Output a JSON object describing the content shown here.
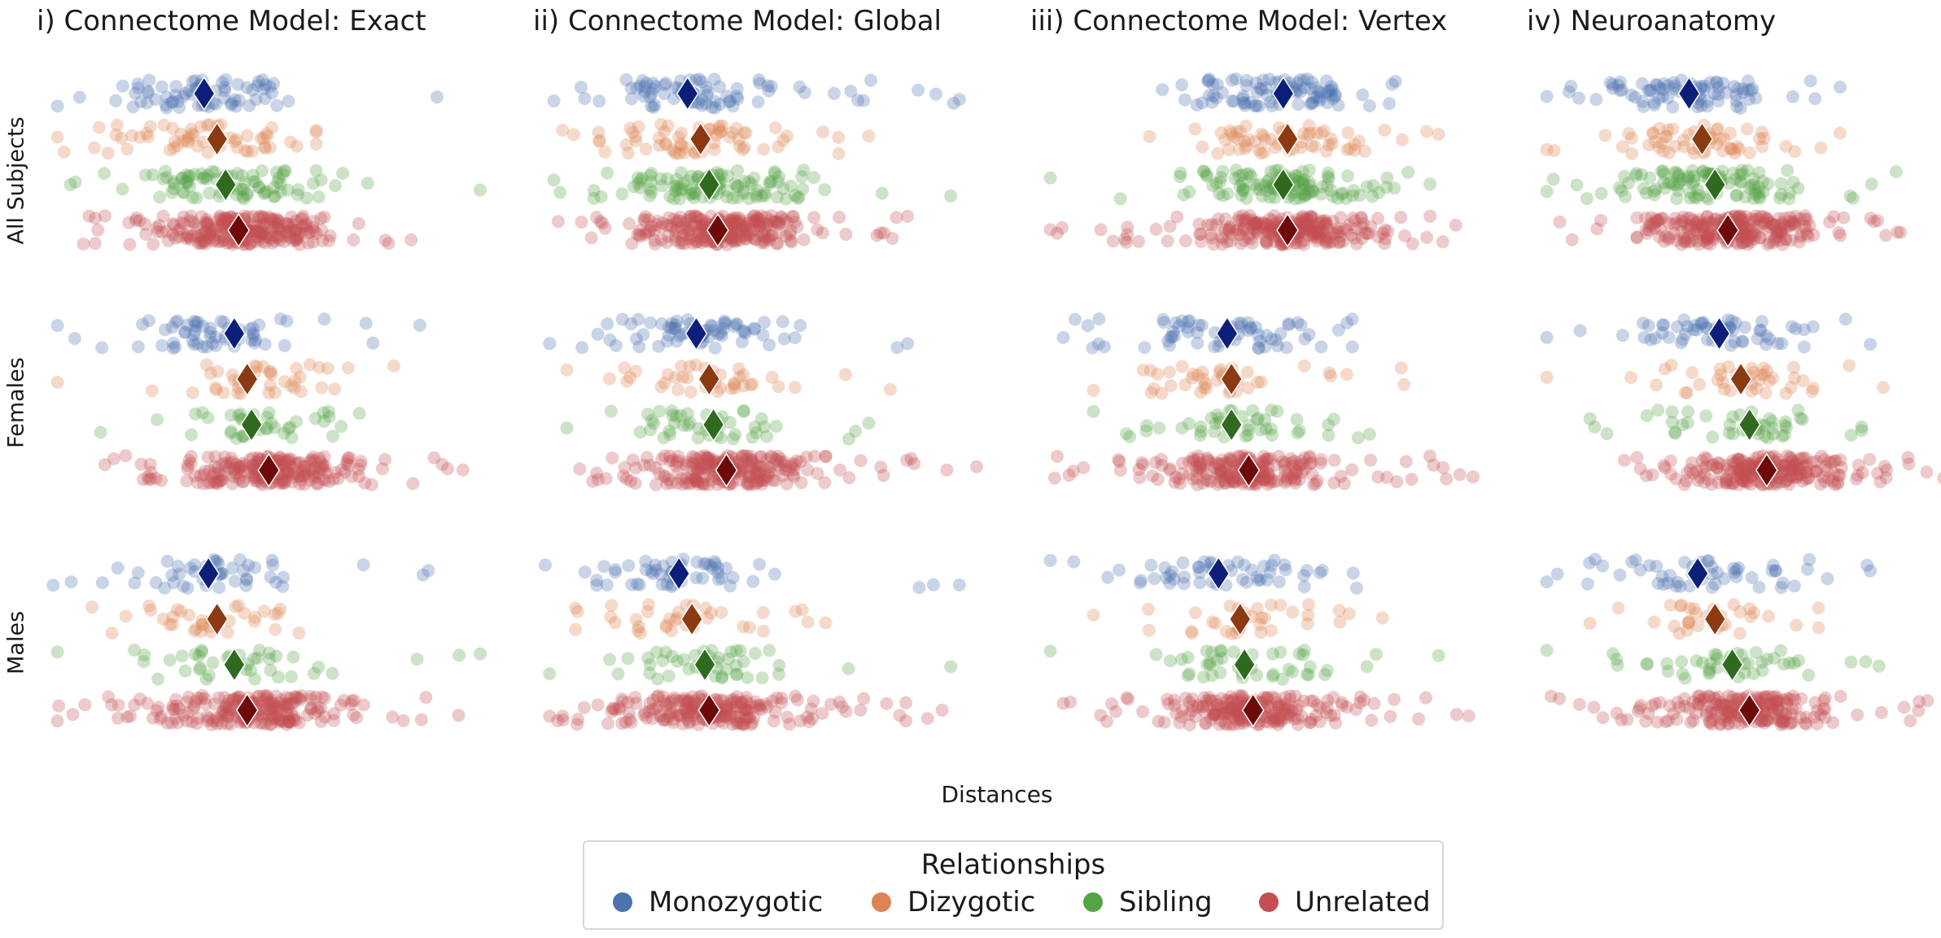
{
  "panels": [
    {
      "title": "i) Connectome Model: Exact"
    },
    {
      "title": "ii) Connectome Model: Global"
    },
    {
      "title": "iii) Connectome Model: Vertex"
    },
    {
      "title": "iv) Neuroanatomy"
    }
  ],
  "rows": [
    {
      "label": "All Subjects"
    },
    {
      "label": "Females"
    },
    {
      "label": "Males"
    }
  ],
  "xlabel": "Distances",
  "legend": {
    "title": "Relationships",
    "items": [
      {
        "label": "Monozygotic",
        "color": "#4c72b0"
      },
      {
        "label": "Dizygotic",
        "color": "#dd8452"
      },
      {
        "label": "Sibling",
        "color": "#55a345"
      },
      {
        "label": "Unrelated",
        "color": "#c44e52"
      }
    ]
  },
  "chart_data": {
    "type": "scatter",
    "subtype": "strip plot with mean markers",
    "xlabel": "Distances",
    "categories": [
      "Monozygotic",
      "Dizygotic",
      "Sibling",
      "Unrelated"
    ],
    "category_colors": [
      "#4c72b0",
      "#dd8452",
      "#55a345",
      "#c44e52"
    ],
    "mean_marker_colors": [
      "#0d1f7a",
      "#8b3a11",
      "#2f6a1e",
      "#6e0a0a"
    ],
    "axis_ticks_visible": false,
    "grid": false,
    "legend_position": "bottom-center",
    "panels": [
      {
        "column": "i) Connectome Model: Exact",
        "row": "All Subjects",
        "groups": [
          {
            "name": "Monozygotic",
            "center": 0.36,
            "spread": 0.22,
            "min": 0.02,
            "max": 0.9,
            "n": 70,
            "mean": 0.36
          },
          {
            "name": "Dizygotic",
            "center": 0.38,
            "spread": 0.2,
            "min": 0.02,
            "max": 0.62,
            "n": 60,
            "mean": 0.39
          },
          {
            "name": "Sibling",
            "center": 0.41,
            "spread": 0.22,
            "min": 0.05,
            "max": 1.0,
            "n": 90,
            "mean": 0.41
          },
          {
            "name": "Unrelated",
            "center": 0.44,
            "spread": 0.18,
            "min": 0.08,
            "max": 0.84,
            "n": 260,
            "mean": 0.44
          }
        ]
      },
      {
        "column": "i) Connectome Model: Exact",
        "row": "Females",
        "groups": [
          {
            "name": "Monozygotic",
            "center": 0.4,
            "spread": 0.2,
            "min": 0.02,
            "max": 0.86,
            "n": 60,
            "mean": 0.43
          },
          {
            "name": "Dizygotic",
            "center": 0.46,
            "spread": 0.2,
            "min": 0.02,
            "max": 0.8,
            "n": 40,
            "mean": 0.46
          },
          {
            "name": "Sibling",
            "center": 0.47,
            "spread": 0.22,
            "min": 0.12,
            "max": 0.72,
            "n": 40,
            "mean": 0.47
          },
          {
            "name": "Unrelated",
            "center": 0.51,
            "spread": 0.2,
            "min": 0.13,
            "max": 0.96,
            "n": 220,
            "mean": 0.51
          }
        ]
      },
      {
        "column": "i) Connectome Model: Exact",
        "row": "Males",
        "groups": [
          {
            "name": "Monozygotic",
            "center": 0.38,
            "spread": 0.2,
            "min": 0.01,
            "max": 0.88,
            "n": 50,
            "mean": 0.37
          },
          {
            "name": "Dizygotic",
            "center": 0.38,
            "spread": 0.18,
            "min": 0.1,
            "max": 0.58,
            "n": 35,
            "mean": 0.39
          },
          {
            "name": "Sibling",
            "center": 0.43,
            "spread": 0.22,
            "min": 0.02,
            "max": 1.0,
            "n": 40,
            "mean": 0.43
          },
          {
            "name": "Unrelated",
            "center": 0.46,
            "spread": 0.2,
            "min": 0.02,
            "max": 0.95,
            "n": 220,
            "mean": 0.46
          }
        ]
      },
      {
        "column": "ii) Connectome Model: Global",
        "row": "All Subjects",
        "groups": [
          {
            "name": "Monozygotic",
            "center": 0.33,
            "spread": 0.2,
            "min": 0.02,
            "max": 0.96,
            "n": 80,
            "mean": 0.33
          },
          {
            "name": "Dizygotic",
            "center": 0.36,
            "spread": 0.22,
            "min": 0.04,
            "max": 0.75,
            "n": 65,
            "mean": 0.36
          },
          {
            "name": "Sibling",
            "center": 0.38,
            "spread": 0.22,
            "min": 0.02,
            "max": 0.94,
            "n": 110,
            "mean": 0.38
          },
          {
            "name": "Unrelated",
            "center": 0.4,
            "spread": 0.17,
            "min": 0.03,
            "max": 0.84,
            "n": 260,
            "mean": 0.4
          }
        ]
      },
      {
        "column": "ii) Connectome Model: Global",
        "row": "Females",
        "groups": [
          {
            "name": "Monozygotic",
            "center": 0.34,
            "spread": 0.2,
            "min": 0.01,
            "max": 0.84,
            "n": 70,
            "mean": 0.35
          },
          {
            "name": "Dizygotic",
            "center": 0.37,
            "spread": 0.2,
            "min": 0.05,
            "max": 0.8,
            "n": 40,
            "mean": 0.38
          },
          {
            "name": "Sibling",
            "center": 0.39,
            "spread": 0.22,
            "min": 0.05,
            "max": 0.75,
            "n": 45,
            "mean": 0.39
          },
          {
            "name": "Unrelated",
            "center": 0.42,
            "spread": 0.2,
            "min": 0.08,
            "max": 1.0,
            "n": 230,
            "mean": 0.42
          }
        ]
      },
      {
        "column": "ii) Connectome Model: Global",
        "row": "Males",
        "groups": [
          {
            "name": "Monozygotic",
            "center": 0.3,
            "spread": 0.2,
            "min": 0.0,
            "max": 0.96,
            "n": 55,
            "mean": 0.31
          },
          {
            "name": "Dizygotic",
            "center": 0.33,
            "spread": 0.2,
            "min": 0.07,
            "max": 0.65,
            "n": 35,
            "mean": 0.34
          },
          {
            "name": "Sibling",
            "center": 0.37,
            "spread": 0.22,
            "min": 0.01,
            "max": 0.94,
            "n": 45,
            "mean": 0.37
          },
          {
            "name": "Unrelated",
            "center": 0.38,
            "spread": 0.2,
            "min": 0.01,
            "max": 0.92,
            "n": 220,
            "mean": 0.38
          }
        ]
      },
      {
        "column": "iii) Connectome Model: Vertex",
        "row": "All Subjects",
        "groups": [
          {
            "name": "Monozygotic",
            "center": 0.55,
            "spread": 0.18,
            "min": 0.28,
            "max": 0.82,
            "n": 90,
            "mean": 0.56
          },
          {
            "name": "Dizygotic",
            "center": 0.56,
            "spread": 0.2,
            "min": 0.25,
            "max": 0.92,
            "n": 60,
            "mean": 0.57
          },
          {
            "name": "Sibling",
            "center": 0.56,
            "spread": 0.2,
            "min": 0.02,
            "max": 0.9,
            "n": 120,
            "mean": 0.56
          },
          {
            "name": "Unrelated",
            "center": 0.57,
            "spread": 0.2,
            "min": 0.02,
            "max": 0.96,
            "n": 260,
            "mean": 0.57
          }
        ]
      },
      {
        "column": "iii) Connectome Model: Vertex",
        "row": "Females",
        "groups": [
          {
            "name": "Monozygotic",
            "center": 0.41,
            "spread": 0.2,
            "min": 0.05,
            "max": 0.72,
            "n": 70,
            "mean": 0.43
          },
          {
            "name": "Dizygotic",
            "center": 0.44,
            "spread": 0.2,
            "min": 0.12,
            "max": 0.84,
            "n": 40,
            "mean": 0.44
          },
          {
            "name": "Sibling",
            "center": 0.44,
            "spread": 0.2,
            "min": 0.12,
            "max": 0.76,
            "n": 45,
            "mean": 0.44
          },
          {
            "name": "Unrelated",
            "center": 0.48,
            "spread": 0.2,
            "min": 0.03,
            "max": 1.0,
            "n": 230,
            "mean": 0.48
          }
        ]
      },
      {
        "column": "iii) Connectome Model: Vertex",
        "row": "Males",
        "groups": [
          {
            "name": "Monozygotic",
            "center": 0.42,
            "spread": 0.2,
            "min": 0.02,
            "max": 0.73,
            "n": 55,
            "mean": 0.41
          },
          {
            "name": "Dizygotic",
            "center": 0.46,
            "spread": 0.2,
            "min": 0.12,
            "max": 0.79,
            "n": 35,
            "mean": 0.46
          },
          {
            "name": "Sibling",
            "center": 0.47,
            "spread": 0.22,
            "min": 0.02,
            "max": 0.92,
            "n": 45,
            "mean": 0.47
          },
          {
            "name": "Unrelated",
            "center": 0.49,
            "spread": 0.2,
            "min": 0.05,
            "max": 0.99,
            "n": 220,
            "mean": 0.49
          }
        ]
      },
      {
        "column": "iv) Neuroanatomy",
        "row": "All Subjects",
        "groups": [
          {
            "name": "Monozygotic",
            "center": 0.35,
            "spread": 0.2,
            "min": 0.02,
            "max": 0.7,
            "n": 80,
            "mean": 0.35
          },
          {
            "name": "Dizygotic",
            "center": 0.38,
            "spread": 0.2,
            "min": 0.02,
            "max": 0.7,
            "n": 60,
            "mean": 0.38
          },
          {
            "name": "Sibling",
            "center": 0.41,
            "spread": 0.22,
            "min": 0.02,
            "max": 0.83,
            "n": 110,
            "mean": 0.41
          },
          {
            "name": "Unrelated",
            "center": 0.44,
            "spread": 0.18,
            "min": 0.05,
            "max": 0.84,
            "n": 260,
            "mean": 0.44
          }
        ]
      },
      {
        "column": "iv) Neuroanatomy",
        "row": "Females",
        "groups": [
          {
            "name": "Monozygotic",
            "center": 0.42,
            "spread": 0.2,
            "min": 0.02,
            "max": 0.77,
            "n": 60,
            "mean": 0.42
          },
          {
            "name": "Dizygotic",
            "center": 0.47,
            "spread": 0.2,
            "min": 0.02,
            "max": 0.8,
            "n": 40,
            "mean": 0.47
          },
          {
            "name": "Sibling",
            "center": 0.49,
            "spread": 0.22,
            "min": 0.12,
            "max": 0.75,
            "n": 45,
            "mean": 0.49
          },
          {
            "name": "Unrelated",
            "center": 0.53,
            "spread": 0.2,
            "min": 0.2,
            "max": 1.0,
            "n": 230,
            "mean": 0.53
          }
        ]
      },
      {
        "column": "iv) Neuroanatomy",
        "row": "Males",
        "groups": [
          {
            "name": "Monozygotic",
            "center": 0.38,
            "spread": 0.2,
            "min": 0.02,
            "max": 0.77,
            "n": 55,
            "mean": 0.37
          },
          {
            "name": "Dizygotic",
            "center": 0.41,
            "spread": 0.18,
            "min": 0.12,
            "max": 0.65,
            "n": 35,
            "mean": 0.41
          },
          {
            "name": "Sibling",
            "center": 0.45,
            "spread": 0.22,
            "min": 0.02,
            "max": 0.79,
            "n": 45,
            "mean": 0.45
          },
          {
            "name": "Unrelated",
            "center": 0.49,
            "spread": 0.2,
            "min": 0.03,
            "max": 0.97,
            "n": 220,
            "mean": 0.49
          }
        ]
      }
    ]
  }
}
